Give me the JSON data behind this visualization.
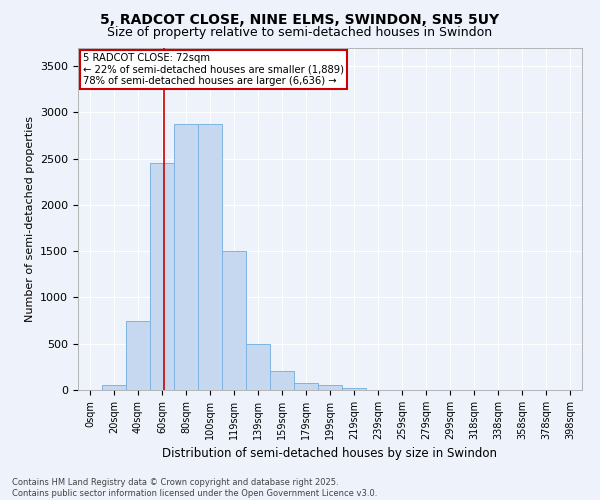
{
  "title_line1": "5, RADCOT CLOSE, NINE ELMS, SWINDON, SN5 5UY",
  "title_line2": "Size of property relative to semi-detached houses in Swindon",
  "xlabel": "Distribution of semi-detached houses by size in Swindon",
  "ylabel": "Number of semi-detached properties",
  "categories": [
    "0sqm",
    "20sqm",
    "40sqm",
    "60sqm",
    "80sqm",
    "100sqm",
    "119sqm",
    "139sqm",
    "159sqm",
    "179sqm",
    "199sqm",
    "219sqm",
    "239sqm",
    "259sqm",
    "279sqm",
    "299sqm",
    "318sqm",
    "338sqm",
    "358sqm",
    "378sqm",
    "398sqm"
  ],
  "values": [
    5,
    55,
    750,
    2450,
    2870,
    2870,
    1500,
    500,
    200,
    75,
    50,
    20,
    5,
    0,
    0,
    0,
    0,
    0,
    0,
    0,
    0
  ],
  "bar_color": "#C5D8F0",
  "bar_edge_color": "#7EB4E2",
  "pct_smaller": 22,
  "pct_larger": 78,
  "count_smaller": 1889,
  "count_larger": 6636,
  "annotation_box_color": "#ffffff",
  "annotation_box_edgecolor": "#cc0000",
  "vline_color": "#cc0000",
  "ylim": [
    0,
    3700
  ],
  "yticks": [
    0,
    500,
    1000,
    1500,
    2000,
    2500,
    3000,
    3500
  ],
  "footnote": "Contains HM Land Registry data © Crown copyright and database right 2025.\nContains public sector information licensed under the Open Government Licence v3.0.",
  "bg_color": "#eef2fb",
  "grid_color": "#ffffff",
  "title_fontsize": 10,
  "subtitle_fontsize": 9
}
